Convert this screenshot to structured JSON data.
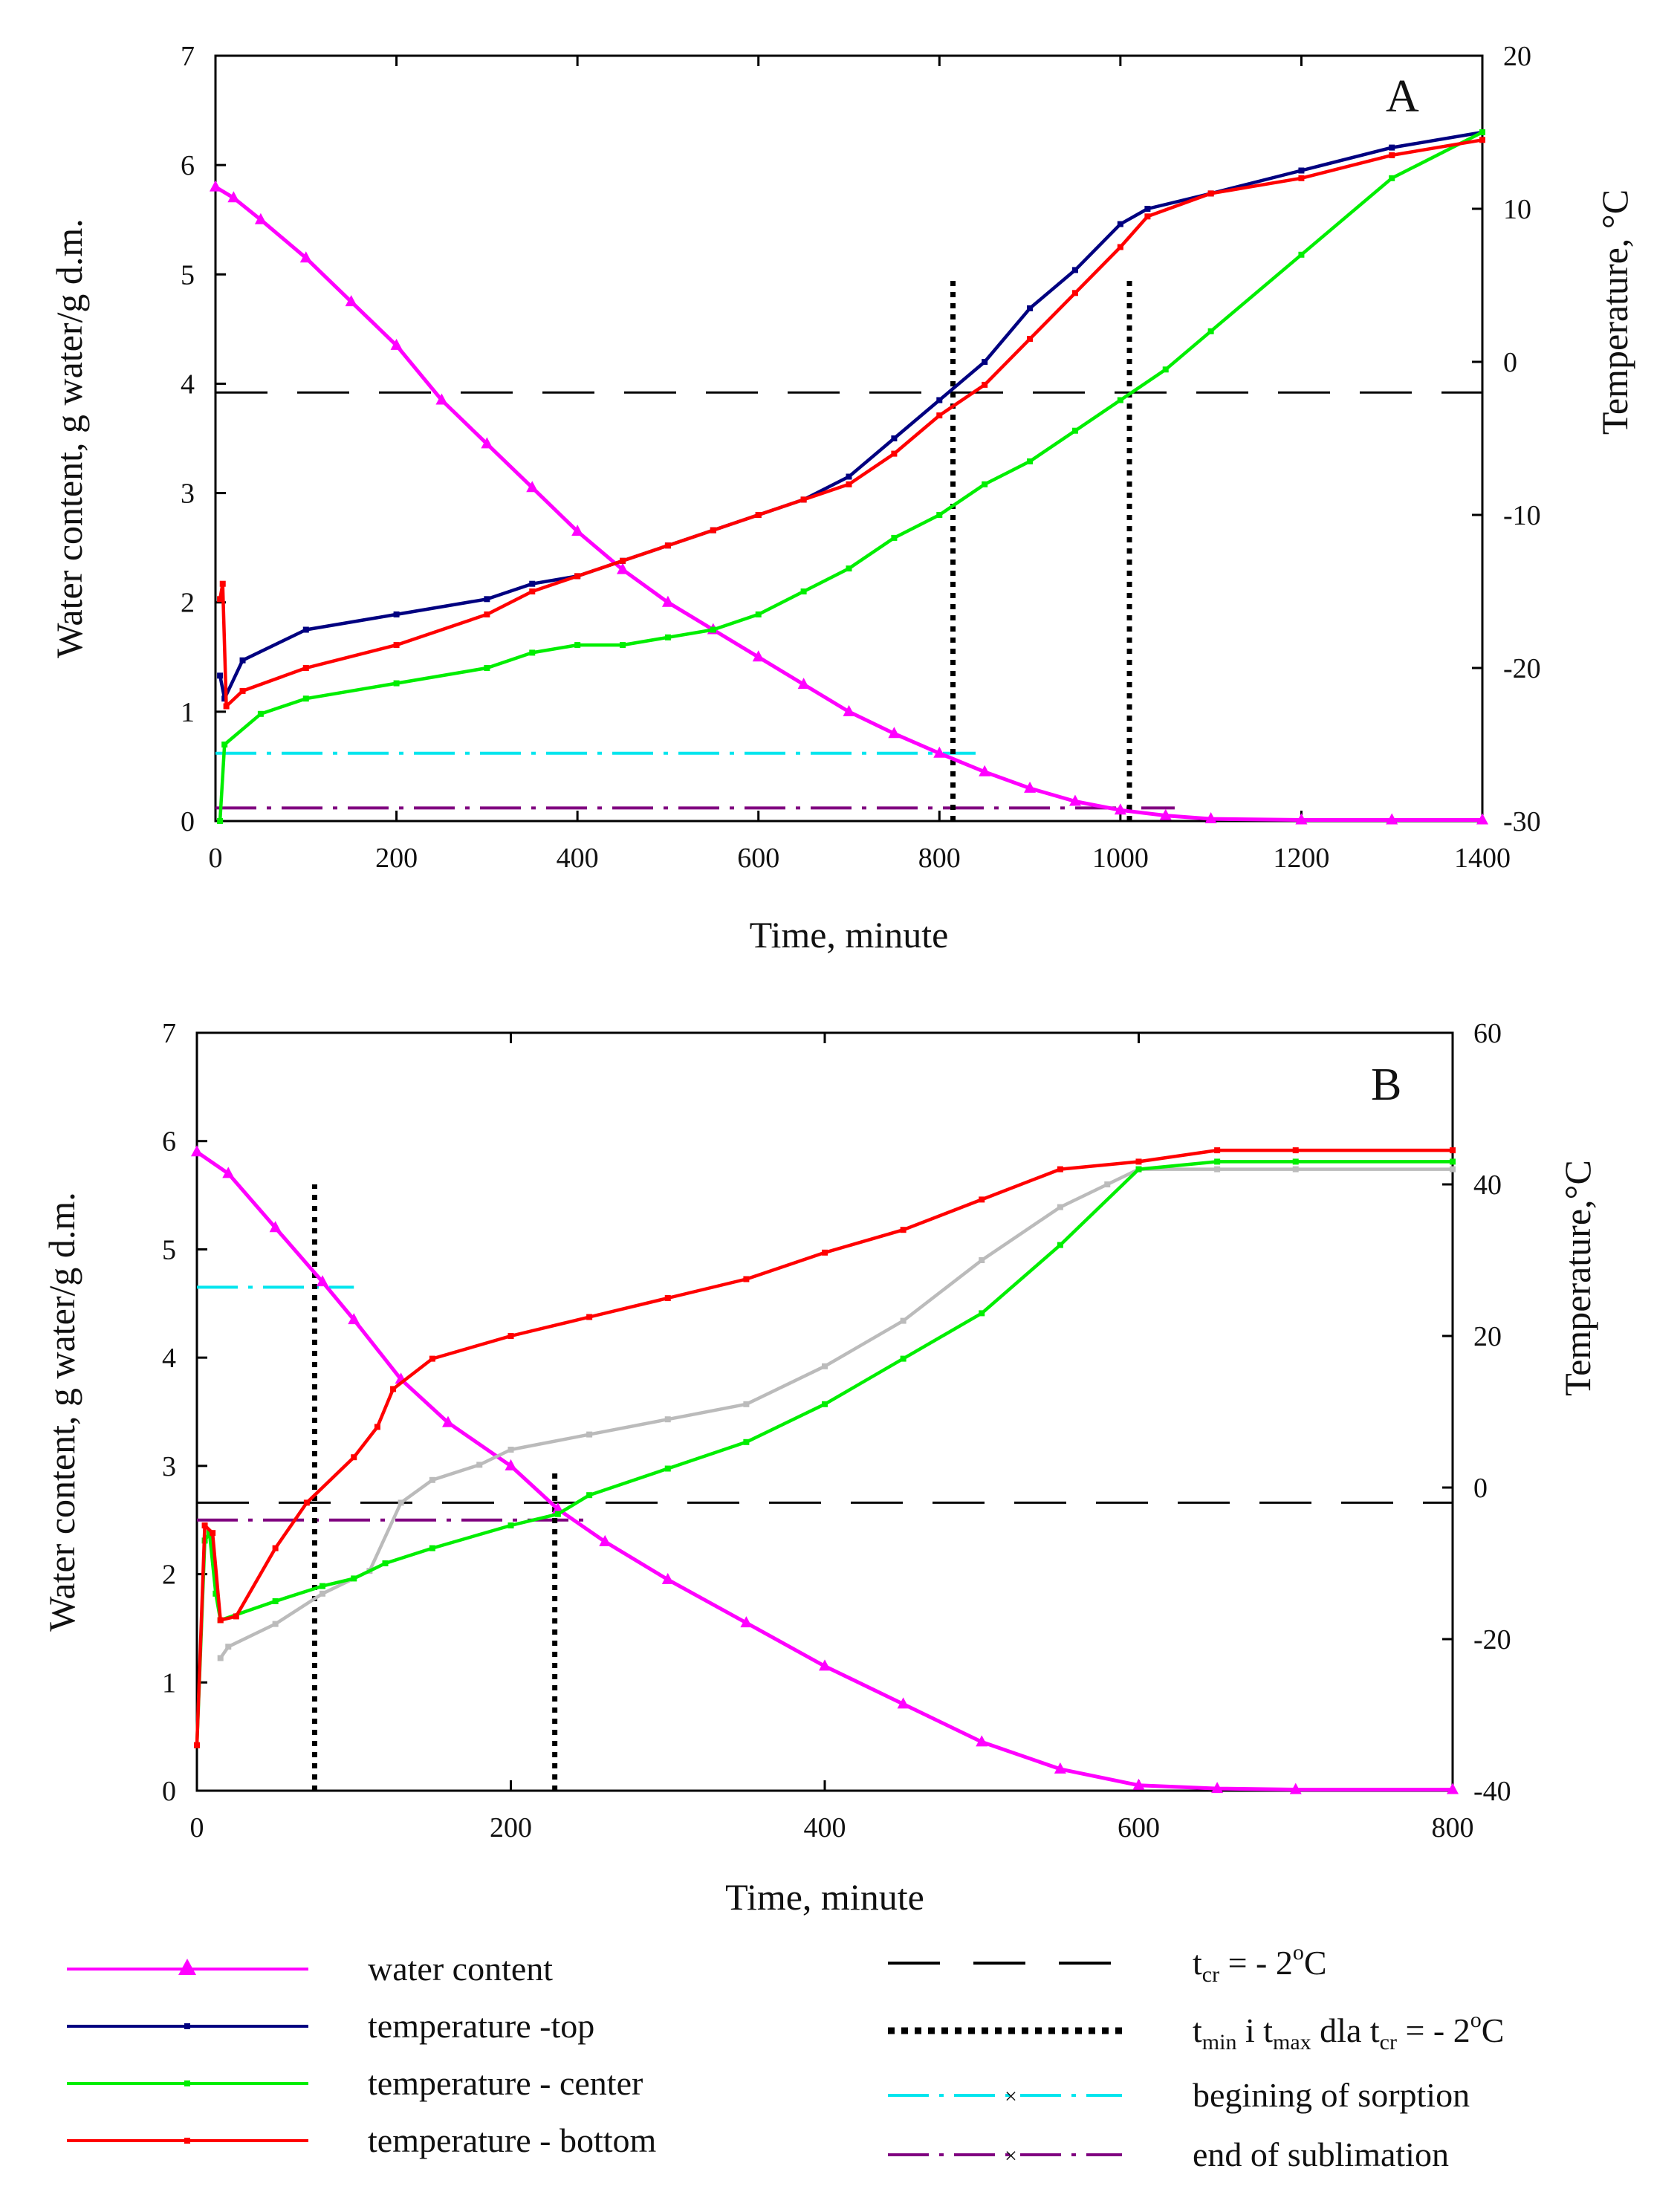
{
  "chart_data": [
    {
      "type": "line",
      "panel_label": "A",
      "xlabel": "Time, minute",
      "ylabel_left": "Water content, g water/g d.m.",
      "ylabel_right": "Temperature, °C",
      "xlim": [
        0,
        1400
      ],
      "ylim_left": [
        0,
        7
      ],
      "ylim_right": [
        -30,
        20
      ],
      "x_ticks": [
        "0",
        "200",
        "400",
        "600",
        "800",
        "1000",
        "1200",
        "1400"
      ],
      "y_ticks_left": [
        "0",
        "1",
        "2",
        "3",
        "4",
        "5",
        "6",
        "7"
      ],
      "y_ticks_right": [
        "-30",
        "-20",
        "-10",
        "0",
        "10",
        "20"
      ],
      "series": [
        {
          "key": "water",
          "axis": "left",
          "color": "#ff00ff",
          "x": [
            0,
            20,
            50,
            100,
            150,
            200,
            250,
            300,
            350,
            400,
            450,
            500,
            550,
            600,
            650,
            700,
            750,
            800,
            850,
            900,
            950,
            1000,
            1050,
            1100,
            1200,
            1300,
            1400
          ],
          "y": [
            5.8,
            5.7,
            5.5,
            5.15,
            4.75,
            4.35,
            3.85,
            3.45,
            3.05,
            2.65,
            2.3,
            2.0,
            1.75,
            1.5,
            1.25,
            1.0,
            0.8,
            0.62,
            0.45,
            0.3,
            0.18,
            0.1,
            0.05,
            0.02,
            0.01,
            0.01,
            0.01
          ]
        },
        {
          "key": "top",
          "axis": "right",
          "color": "#000080",
          "x": [
            5,
            10,
            30,
            100,
            200,
            300,
            350,
            400,
            450,
            500,
            550,
            600,
            650,
            700,
            750,
            800,
            850,
            900,
            950,
            1000,
            1030,
            1100,
            1200,
            1300,
            1400
          ],
          "y": [
            -20.5,
            -22.0,
            -19.5,
            -17.5,
            -16.5,
            -15.5,
            -14.5,
            -14.0,
            -13.0,
            -12.0,
            -11.0,
            -10.0,
            -9.0,
            -7.5,
            -5.0,
            -2.5,
            0.0,
            3.5,
            6.0,
            9.0,
            10.0,
            11.0,
            12.5,
            14.0,
            15.0
          ]
        },
        {
          "key": "center",
          "axis": "right",
          "color": "#00ee00",
          "x": [
            5,
            10,
            50,
            100,
            200,
            300,
            350,
            400,
            450,
            500,
            550,
            600,
            650,
            700,
            750,
            800,
            850,
            900,
            950,
            1000,
            1050,
            1100,
            1200,
            1300,
            1400
          ],
          "y": [
            -30.0,
            -25.0,
            -23.0,
            -22.0,
            -21.0,
            -20.0,
            -19.0,
            -18.5,
            -18.5,
            -18.0,
            -17.5,
            -16.5,
            -15.0,
            -13.5,
            -11.5,
            -10.0,
            -8.0,
            -6.5,
            -4.5,
            -2.5,
            -0.5,
            2.0,
            7.0,
            12.0,
            15.0
          ]
        },
        {
          "key": "bottom",
          "axis": "right",
          "color": "#ff0000",
          "x": [
            5,
            8,
            12,
            30,
            100,
            200,
            300,
            350,
            400,
            450,
            500,
            550,
            600,
            650,
            700,
            750,
            800,
            850,
            900,
            950,
            1000,
            1030,
            1100,
            1200,
            1300,
            1400
          ],
          "y": [
            -15.5,
            -14.5,
            -22.5,
            -21.5,
            -20.0,
            -18.5,
            -16.5,
            -15.0,
            -14.0,
            -13.0,
            -12.0,
            -11.0,
            -10.0,
            -9.0,
            -8.0,
            -6.0,
            -3.5,
            -1.5,
            1.5,
            4.5,
            7.5,
            9.5,
            11.0,
            12.0,
            13.5,
            14.5
          ]
        }
      ],
      "reference_lines": {
        "t_cr_y_right": -2,
        "sorption_y_left": 0.62,
        "sorption_x_range": [
          0,
          840
        ],
        "sublimation_y_left": 0.12,
        "sublimation_x_range": [
          0,
          1060
        ],
        "t_min_x": 815,
        "t_max_x": 1010,
        "dotted_top_y_left": [
          4.95,
          4.95
        ]
      }
    },
    {
      "type": "line",
      "panel_label": "B",
      "xlabel": "Time, minute",
      "ylabel_left": "Water content, g water/g d.m.",
      "ylabel_right": "Temperature,°C",
      "xlim": [
        0,
        800
      ],
      "ylim_left": [
        0,
        7
      ],
      "ylim_right": [
        -40,
        60
      ],
      "x_ticks": [
        "0",
        "200",
        "400",
        "600",
        "800"
      ],
      "y_ticks_left": [
        "0",
        "1",
        "2",
        "3",
        "4",
        "5",
        "6",
        "7"
      ],
      "y_ticks_right": [
        "-40",
        "-20",
        "0",
        "20",
        "40",
        "60"
      ],
      "series": [
        {
          "key": "water",
          "axis": "left",
          "color": "#ff00ff",
          "x": [
            0,
            20,
            50,
            80,
            100,
            130,
            160,
            200,
            230,
            260,
            300,
            350,
            400,
            450,
            500,
            550,
            600,
            650,
            700,
            800
          ],
          "y": [
            5.9,
            5.7,
            5.2,
            4.7,
            4.35,
            3.8,
            3.4,
            3.0,
            2.6,
            2.3,
            1.95,
            1.55,
            1.15,
            0.8,
            0.45,
            0.2,
            0.05,
            0.02,
            0.01,
            0.01
          ]
        },
        {
          "key": "top",
          "axis": "right",
          "color": "#bbbbbb",
          "x": [
            15,
            20,
            50,
            80,
            110,
            130,
            150,
            180,
            200,
            250,
            300,
            350,
            400,
            450,
            500,
            550,
            580,
            600,
            650,
            700,
            800
          ],
          "y": [
            -22.5,
            -21.0,
            -18.0,
            -14.0,
            -11.0,
            -2.0,
            1.0,
            3.0,
            5.0,
            7.0,
            9.0,
            11.0,
            16.0,
            22.0,
            30.0,
            37.0,
            40.0,
            42.0,
            42.0,
            42.0,
            42.0
          ]
        },
        {
          "key": "center",
          "axis": "right",
          "color": "#00ee00",
          "x": [
            0,
            5,
            8,
            12,
            15,
            50,
            80,
            100,
            120,
            150,
            200,
            230,
            250,
            300,
            350,
            400,
            450,
            500,
            550,
            600,
            650,
            700,
            800
          ],
          "y": [
            -34.0,
            -7.0,
            -6.0,
            -14.0,
            -17.5,
            -15.0,
            -13.0,
            -12.0,
            -10.0,
            -8.0,
            -5.0,
            -3.5,
            -1.0,
            2.5,
            6.0,
            11.0,
            17.0,
            23.0,
            32.0,
            42.0,
            43.0,
            43.0,
            43.0
          ]
        },
        {
          "key": "bottom",
          "axis": "right",
          "color": "#ff0000",
          "x": [
            0,
            5,
            10,
            15,
            25,
            50,
            70,
            100,
            115,
            125,
            150,
            200,
            250,
            300,
            350,
            400,
            450,
            500,
            550,
            600,
            650,
            700,
            800
          ],
          "y": [
            -34.0,
            -5.0,
            -6.0,
            -17.5,
            -17.0,
            -8.0,
            -2.0,
            4.0,
            8.0,
            13.0,
            17.0,
            20.0,
            22.5,
            25.0,
            27.5,
            31.0,
            34.0,
            38.0,
            42.0,
            43.0,
            44.5,
            44.5,
            44.5
          ]
        }
      ],
      "reference_lines": {
        "t_cr_y_right": -2,
        "sorption_y_left": 4.65,
        "sorption_x_range": [
          0,
          100
        ],
        "sublimation_y_left": 2.5,
        "sublimation_x_range": [
          0,
          250
        ],
        "t_min_x": 75,
        "t_max_x": 228,
        "dotted_top_y_left": [
          5.6,
          2.95
        ]
      }
    }
  ],
  "legend": {
    "left": [
      {
        "key": "water",
        "label": "water content",
        "color": "#ff00ff",
        "marker": "triangle"
      },
      {
        "key": "top",
        "label": "temperature -top",
        "color": "#000080",
        "marker": "small"
      },
      {
        "key": "center",
        "label": "temperature - center",
        "color": "#00ee00",
        "marker": "small"
      },
      {
        "key": "bottom",
        "label": "temperature - bottom",
        "color": "#ff0000",
        "marker": "small"
      }
    ],
    "right": [
      {
        "key": "tcr",
        "style": "dashed",
        "color": "#000000",
        "label_main": "t",
        "label_sub": "cr",
        "label_rest": " = - 2",
        "label_sup": "o",
        "label_tail": "C"
      },
      {
        "key": "tminmax",
        "style": "dotted",
        "color": "#000000",
        "label_t1": "t",
        "label_sub1": "min",
        "label_mid": " i t",
        "label_sub2": "max",
        "label_rest": " dla t",
        "label_sub3": "cr",
        "label_eq": " = - 2",
        "label_sup": "o",
        "label_tail": "C"
      },
      {
        "key": "sorption",
        "style": "dashdot",
        "color": "#00e5ee",
        "label": "begining of sorption"
      },
      {
        "key": "sublimation",
        "style": "dashdot",
        "color": "#800080",
        "label": "end of sublimation"
      }
    ]
  }
}
